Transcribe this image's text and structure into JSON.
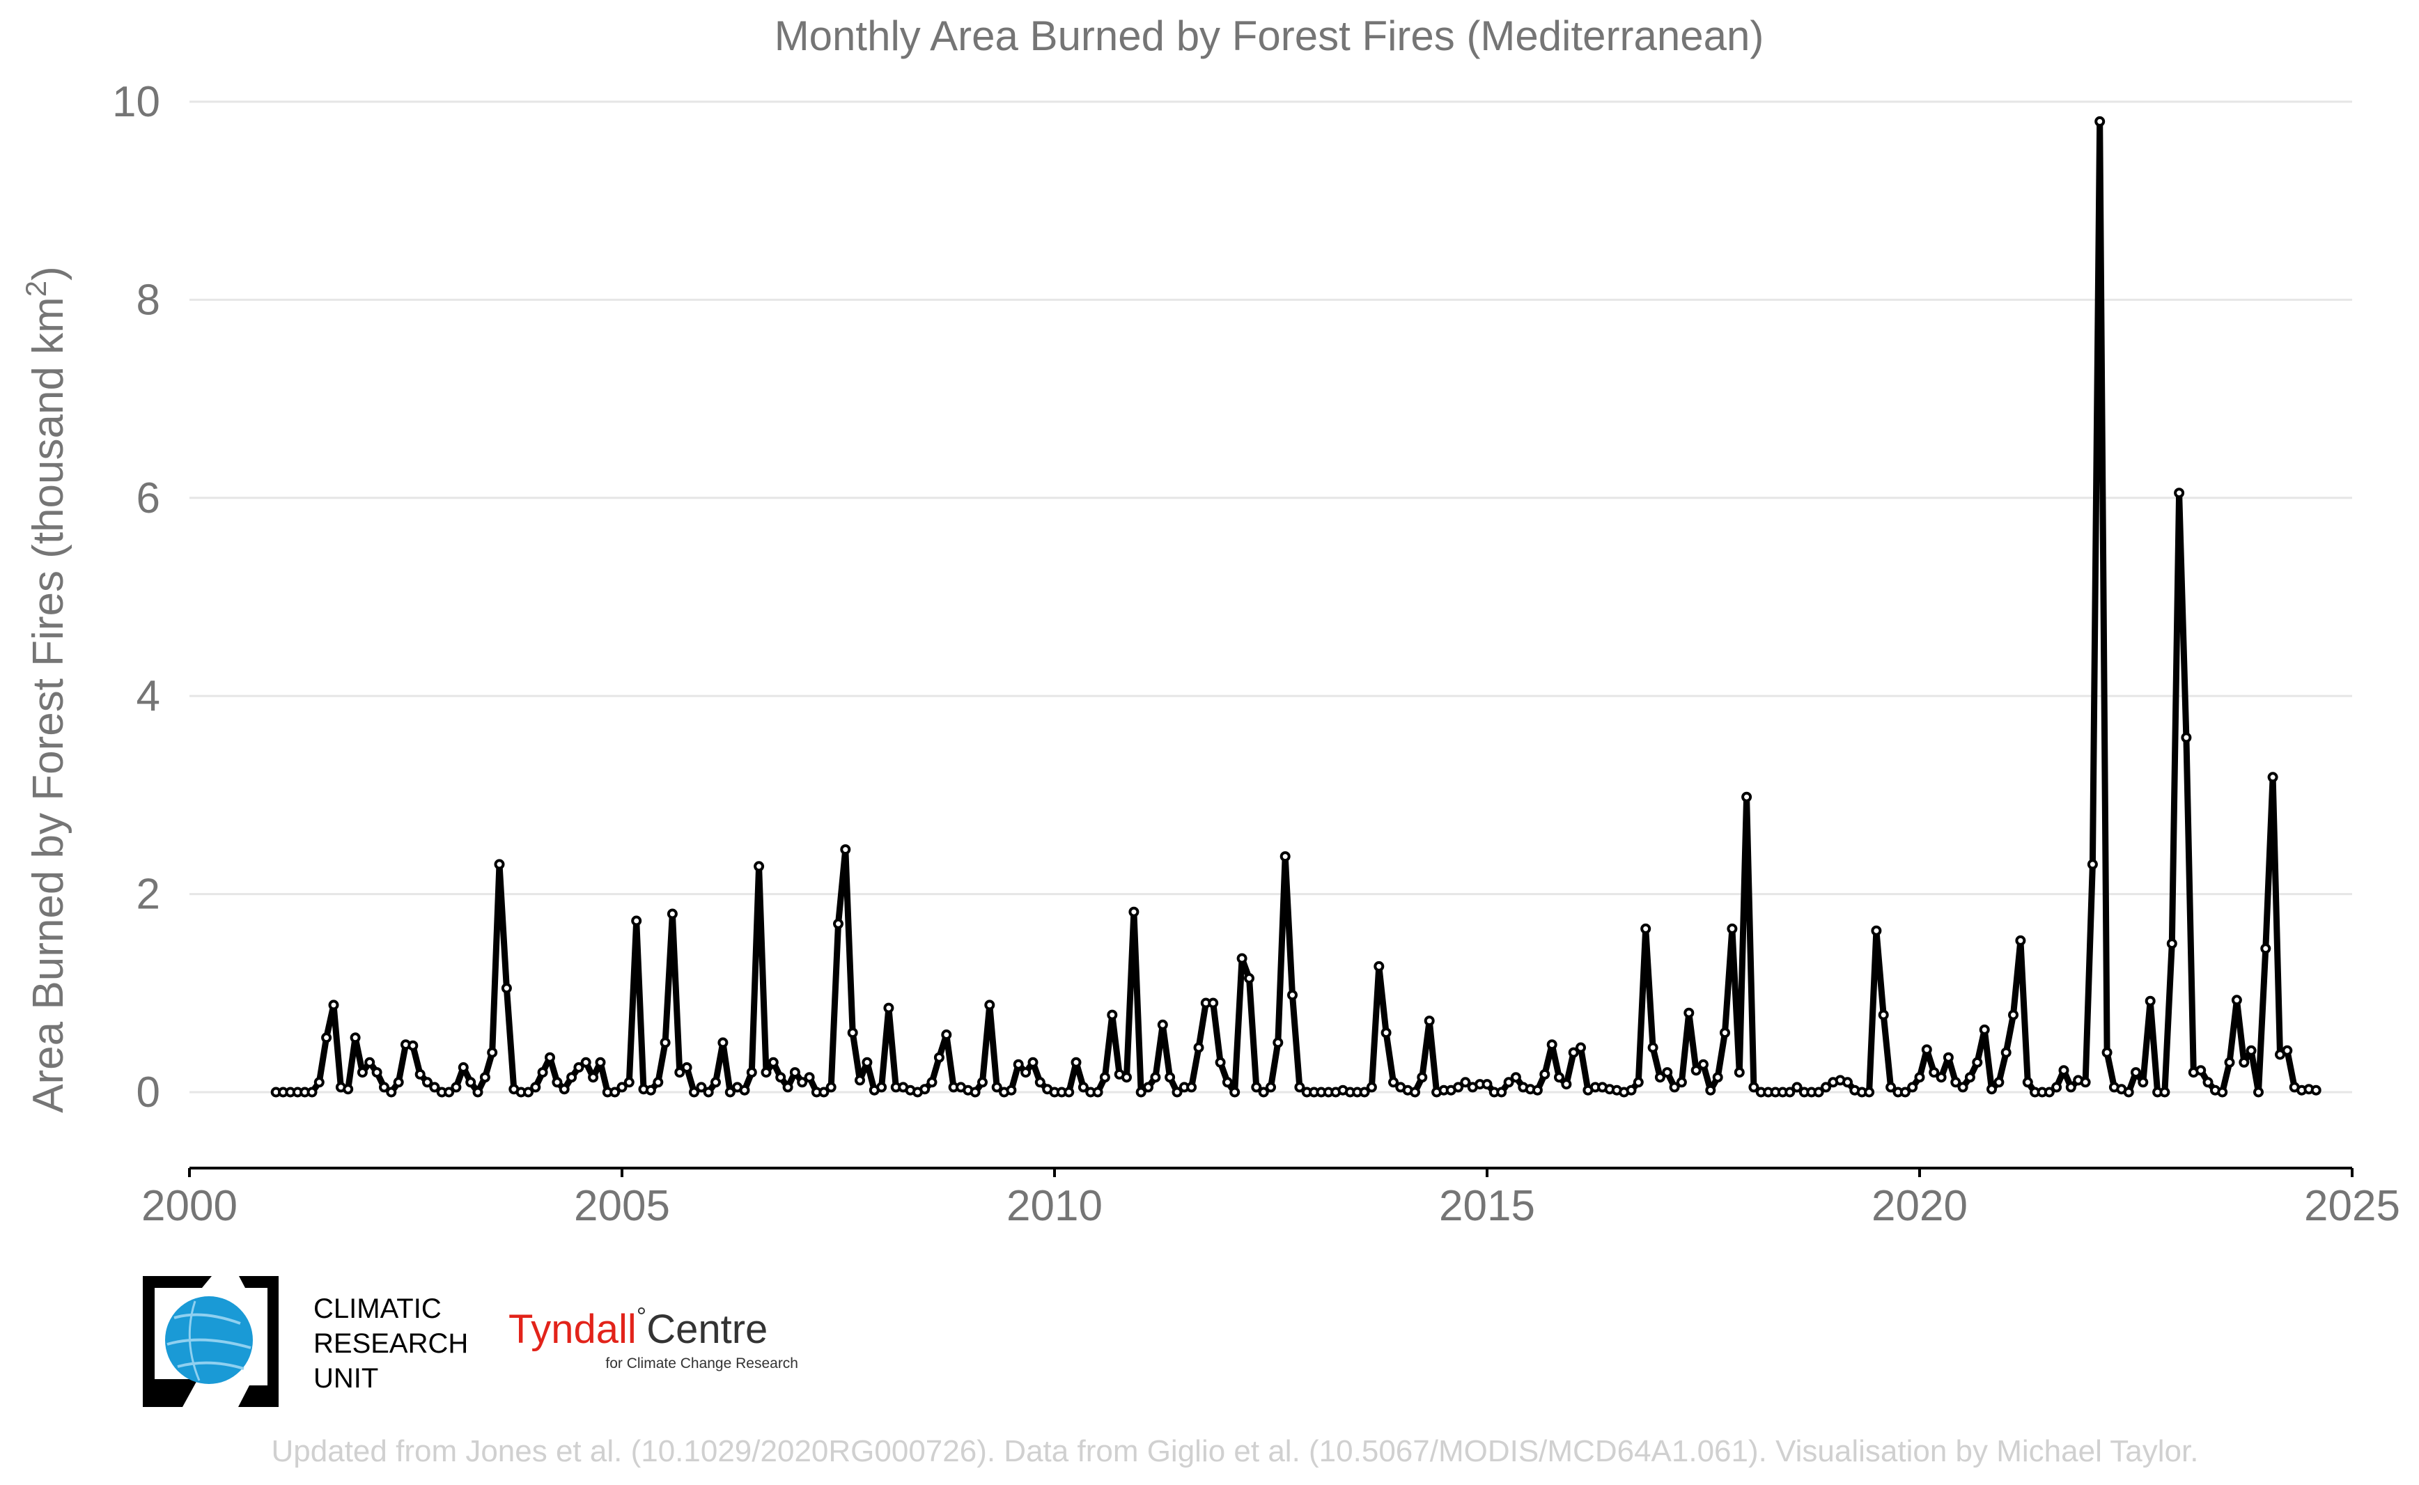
{
  "colors": {
    "line": "#000000",
    "marker_fill": "#ffffff",
    "grid": "#e6e6e6",
    "text": "#757575",
    "caption": "#d0d0d0",
    "cru_blue": "#1a9ad6",
    "tyndall_red": "#e2231a"
  },
  "logos": {
    "cru": {
      "line1": "CLIMATIC",
      "line2": "RESEARCH",
      "line3": "UNIT",
      "icon": "globe-icon"
    },
    "tyndall": {
      "name_part1": "Tyndall",
      "degree": "°",
      "name_part2": "Centre",
      "subtitle": "for Climate Change Research"
    }
  },
  "caption": "Updated from Jones et al. (10.1029/2020RG000726). Data from Giglio et al. (10.5067/MODIS/MCD64A1.061). Visualisation by Michael Taylor.",
  "chart_data": {
    "type": "line",
    "title": "Monthly Area Burned by Forest Fires (Mediterranean)",
    "xlabel": "",
    "ylabel": "Area Burned by Forest Fires (thousand km",
    "ylabel_superscript": "2",
    "ylabel_suffix": ")",
    "xlim": [
      2000,
      2025
    ],
    "ylim": [
      0,
      10
    ],
    "xticks": [
      2000,
      2005,
      2010,
      2015,
      2020,
      2025
    ],
    "yticks": [
      0,
      2,
      4,
      6,
      8,
      10
    ],
    "xtick_labels": [
      "2000",
      "2005",
      "2010",
      "2015",
      "2020",
      "2025"
    ],
    "ytick_labels": [
      "0",
      "2",
      "4",
      "6",
      "8",
      "10"
    ],
    "grid": "horizontal",
    "start_year": 2001,
    "start_month": 1,
    "series": [
      {
        "values": [
          0.0,
          0.0,
          0.0,
          0.0,
          0.0,
          0.0,
          0.1,
          0.55,
          0.88,
          0.05,
          0.03,
          0.55,
          0.2,
          0.3,
          0.2,
          0.05,
          0.0,
          0.1,
          0.48,
          0.47,
          0.18,
          0.1,
          0.05,
          0.0,
          0.0,
          0.05,
          0.25,
          0.1,
          0.0,
          0.15,
          0.4,
          2.3,
          1.05,
          0.03,
          0.0,
          0.0,
          0.05,
          0.2,
          0.35,
          0.1,
          0.03,
          0.15,
          0.25,
          0.3,
          0.15,
          0.3,
          0.0,
          0.0,
          0.05,
          0.1,
          1.73,
          0.03,
          0.02,
          0.1,
          0.5,
          1.8,
          0.2,
          0.25,
          0.0,
          0.05,
          0.0,
          0.1,
          0.5,
          0.0,
          0.05,
          0.02,
          0.2,
          2.28,
          0.2,
          0.3,
          0.15,
          0.05,
          0.2,
          0.1,
          0.15,
          0.0,
          0.0,
          0.05,
          1.7,
          2.45,
          0.6,
          0.12,
          0.3,
          0.02,
          0.05,
          0.85,
          0.05,
          0.05,
          0.02,
          0.0,
          0.03,
          0.1,
          0.35,
          0.58,
          0.05,
          0.05,
          0.02,
          0.0,
          0.1,
          0.88,
          0.05,
          0.0,
          0.02,
          0.28,
          0.2,
          0.3,
          0.1,
          0.03,
          0.0,
          0.0,
          0.0,
          0.3,
          0.05,
          0.0,
          0.0,
          0.15,
          0.78,
          0.18,
          0.15,
          1.82,
          0.0,
          0.05,
          0.15,
          0.68,
          0.15,
          0.0,
          0.05,
          0.05,
          0.45,
          0.9,
          0.9,
          0.3,
          0.1,
          0.0,
          1.35,
          1.15,
          0.05,
          0.0,
          0.05,
          0.5,
          2.38,
          0.98,
          0.05,
          0.0,
          0.0,
          0.0,
          0.0,
          0.0,
          0.02,
          0.0,
          0.0,
          0.0,
          0.05,
          1.27,
          0.6,
          0.1,
          0.05,
          0.02,
          0.0,
          0.15,
          0.72,
          0.0,
          0.02,
          0.02,
          0.05,
          0.1,
          0.05,
          0.08,
          0.08,
          0.0,
          0.0,
          0.1,
          0.15,
          0.05,
          0.03,
          0.02,
          0.18,
          0.48,
          0.15,
          0.08,
          0.4,
          0.45,
          0.02,
          0.05,
          0.05,
          0.03,
          0.02,
          0.0,
          0.02,
          0.1,
          1.65,
          0.45,
          0.15,
          0.2,
          0.05,
          0.1,
          0.8,
          0.22,
          0.28,
          0.02,
          0.15,
          0.6,
          1.65,
          0.2,
          2.98,
          0.05,
          0.0,
          0.0,
          0.0,
          0.0,
          0.0,
          0.05,
          0.0,
          0.0,
          0.0,
          0.05,
          0.1,
          0.12,
          0.1,
          0.02,
          0.0,
          0.0,
          1.63,
          0.78,
          0.05,
          0.0,
          0.0,
          0.05,
          0.15,
          0.43,
          0.2,
          0.15,
          0.35,
          0.1,
          0.05,
          0.15,
          0.3,
          0.63,
          0.03,
          0.1,
          0.4,
          0.78,
          1.53,
          0.1,
          0.0,
          0.0,
          0.0,
          0.05,
          0.22,
          0.05,
          0.12,
          0.1,
          2.3,
          9.8,
          0.4,
          0.05,
          0.03,
          0.0,
          0.2,
          0.1,
          0.92,
          0.0,
          0.0,
          1.5,
          6.05,
          3.58,
          0.2,
          0.22,
          0.1,
          0.02,
          0.0,
          0.3,
          0.93,
          0.3,
          0.42,
          0.0,
          1.45,
          3.18,
          0.38,
          0.42,
          0.05,
          0.02,
          0.03,
          0.02
        ]
      }
    ]
  }
}
